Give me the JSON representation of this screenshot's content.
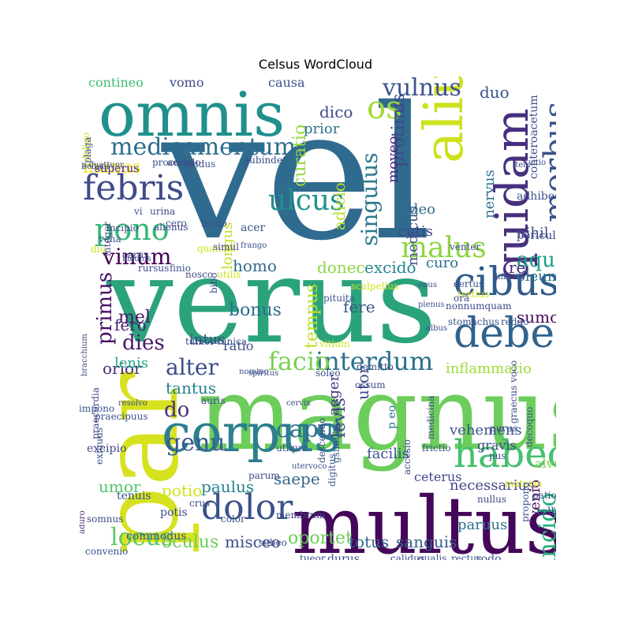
{
  "title": "Celsus WordCloud",
  "words": [
    {
      "t": "vel",
      "c": "#2f6b8f"
    },
    {
      "t": "verus",
      "c": "#2aa37c"
    },
    {
      "t": "magnus",
      "c": "#6ccd5a"
    },
    {
      "t": "par",
      "c": "#d6e21f"
    },
    {
      "t": "multus",
      "c": "#45075a"
    },
    {
      "t": "omnis",
      "c": "#20908d"
    },
    {
      "t": "alius",
      "c": "#cde11d"
    },
    {
      "t": "corpus",
      "c": "#2c7f8e"
    },
    {
      "t": "quidam",
      "c": "#472f7d"
    },
    {
      "t": "cibus",
      "c": "#2f5b8c"
    },
    {
      "t": "debeo",
      "c": "#30628d"
    },
    {
      "t": "habeo",
      "c": "#46c06f"
    },
    {
      "t": "dolor",
      "c": "#3a528b"
    },
    {
      "t": "febris",
      "c": "#3e4a89"
    },
    {
      "t": "medicamentum",
      "c": "#2e6e8e"
    },
    {
      "t": "morbus",
      "c": "#3b518b"
    },
    {
      "t": "pono",
      "c": "#35b779"
    },
    {
      "t": "malus",
      "c": "#8ed542"
    },
    {
      "t": "interdum",
      "c": "#2c718e"
    },
    {
      "t": "os",
      "c": "#a2da37"
    },
    {
      "t": "singulus",
      "c": "#2a788e"
    },
    {
      "t": "facio",
      "c": "#7ad151"
    },
    {
      "t": "ulcus",
      "c": "#21918c"
    },
    {
      "t": "vulnus",
      "c": "#3b528b"
    },
    {
      "t": "locus",
      "c": "#5ec962"
    },
    {
      "t": "caput",
      "c": "#2c728e"
    },
    {
      "t": "incido",
      "c": "#2ab07f"
    },
    {
      "t": "vinum",
      "c": "#440154"
    },
    {
      "t": "alter",
      "c": "#3e4c8a"
    },
    {
      "t": "primus",
      "c": "#471164"
    },
    {
      "t": "dies",
      "c": "#481668"
    },
    {
      "t": "genu",
      "c": "#38598c"
    },
    {
      "t": "aqua",
      "c": "#1fa188"
    },
    {
      "t": "curatio",
      "c": "#95d840"
    },
    {
      "t": "tempus",
      "c": "#bddf26"
    },
    {
      "t": "levis",
      "c": "#404688"
    },
    {
      "t": "oportet",
      "c": "#6ccd5a"
    },
    {
      "t": "sanguis",
      "c": "#34618d"
    },
    {
      "t": "paulus",
      "c": "#26828e"
    },
    {
      "t": "totus",
      "c": "#31688e"
    },
    {
      "t": "vehemens",
      "c": "#3b528b"
    },
    {
      "t": "inflammatio",
      "c": "#9fda3a"
    },
    {
      "t": "do",
      "c": "#46327e"
    },
    {
      "t": "oculus",
      "c": "#6ccd5a"
    },
    {
      "t": "misceo",
      "c": "#3e4a89"
    },
    {
      "t": "homo",
      "c": "#31688e"
    },
    {
      "t": "longus",
      "c": "#c2df23"
    },
    {
      "t": "donec",
      "c": "#8bd646"
    },
    {
      "t": "excido",
      "c": "#24878e"
    },
    {
      "t": "utor",
      "c": "#3e4989"
    },
    {
      "t": "aeger",
      "c": "#453781"
    },
    {
      "t": "saepe",
      "c": "#31688e"
    },
    {
      "t": "facilis",
      "c": "#3b528b"
    },
    {
      "t": "cutis",
      "c": "#3f4788"
    },
    {
      "t": "video",
      "c": "#2e6f8e"
    },
    {
      "t": "nihil",
      "c": "#3d4d8a"
    },
    {
      "t": "tantus",
      "c": "#25848e"
    },
    {
      "t": "bonus",
      "c": "#2e6e8e"
    },
    {
      "t": "fere",
      "c": "#3b528b"
    },
    {
      "t": "sumo",
      "c": "#46075a"
    },
    {
      "t": "oleum",
      "c": "#2d708e"
    },
    {
      "t": "umor",
      "c": "#52c569"
    },
    {
      "t": "orior",
      "c": "#472a7a"
    },
    {
      "t": "fero",
      "c": "#482475"
    },
    {
      "t": "mel",
      "c": "#481a6c"
    },
    {
      "t": "ratio",
      "c": "#3e4a89"
    },
    {
      "t": "intus",
      "c": "#3e4c8a"
    },
    {
      "t": "lenis",
      "c": "#21a685"
    },
    {
      "t": "manus",
      "c": "#f1e51d"
    },
    {
      "t": "potio",
      "c": "#d2e21b"
    },
    {
      "t": "necessarius",
      "c": "#3f4788"
    },
    {
      "t": "gravis",
      "c": "#3e4989"
    },
    {
      "t": "venio",
      "c": "#46085c"
    },
    {
      "t": "paruus",
      "c": "#2c728e"
    },
    {
      "t": "ceterus",
      "c": "#3e4a89"
    },
    {
      "t": "re",
      "c": "#482878"
    },
    {
      "t": "curo",
      "c": "#2c728e"
    },
    {
      "t": "medicus",
      "c": "#3b528b"
    },
    {
      "t": "adicio",
      "c": "#b8de29"
    },
    {
      "t": "prior",
      "c": "#2d708e"
    },
    {
      "t": "dico",
      "c": "#3e4a89"
    },
    {
      "t": "protinus",
      "c": "#3f4788"
    },
    {
      "t": "moveo",
      "c": "#482677"
    },
    {
      "t": "duo",
      "c": "#3b528b"
    },
    {
      "t": "nervus",
      "c": "#2c728e"
    },
    {
      "t": "contineo",
      "c": "#40bd72"
    },
    {
      "t": "vomo",
      "c": "#3e4a89"
    },
    {
      "t": "causa",
      "c": "#3b528b"
    },
    {
      "t": "superus",
      "c": "#482475"
    },
    {
      "t": "conteroacetum",
      "c": "#3e4a89"
    },
    {
      "t": "adhibeo",
      "c": "#3b528b"
    },
    {
      "t": "periculum",
      "c": "#3f4788"
    },
    {
      "t": "alvu",
      "c": "#7ad151"
    },
    {
      "t": "patior",
      "c": "#3b528b"
    },
    {
      "t": "tollo",
      "c": "#3e4c8a"
    },
    {
      "t": "rodo",
      "c": "#3b528b"
    },
    {
      "t": "rectus",
      "c": "#3b528b"
    },
    {
      "t": "pus",
      "c": "#3b528b"
    },
    {
      "t": "purus",
      "c": "#3b528b"
    },
    {
      "t": "p eo",
      "c": "#2c728e"
    },
    {
      "t": "medicina",
      "c": "#3e4a89"
    },
    {
      "t": "tenuis",
      "c": "#3b528b"
    },
    {
      "t": "potis",
      "c": "#3e4a89"
    },
    {
      "t": "commodus",
      "c": "#3b528b"
    },
    {
      "t": "convenio",
      "c": "#3b528b"
    },
    {
      "t": "durus",
      "c": "#3e4a89"
    },
    {
      "t": "tueor",
      "c": "#3e4a89"
    },
    {
      "t": "calidus",
      "c": "#3e4a89"
    },
    {
      "t": "qualis",
      "c": "#3b528b"
    },
    {
      "t": "membrum",
      "c": "#3e4a89"
    },
    {
      "t": "subeo",
      "c": "#3b528b"
    },
    {
      "t": "crus",
      "c": "#3e4a89"
    },
    {
      "t": "color",
      "c": "#3b528b"
    },
    {
      "t": "exiguus",
      "c": "#3b528b"
    },
    {
      "t": "excipio",
      "c": "#3e4a89"
    },
    {
      "t": "aduro",
      "c": "#482878"
    },
    {
      "t": "impono",
      "c": "#3b528b"
    },
    {
      "t": "praecordia",
      "c": "#3e4a89"
    },
    {
      "t": "praecipuus",
      "c": "#3b528b"
    },
    {
      "t": "bracchium",
      "c": "#3e4a89"
    },
    {
      "t": "resolvo",
      "c": "#3e4a89"
    },
    {
      "t": "auris",
      "c": "#3b528b"
    },
    {
      "t": "tumor",
      "c": "#3e4a89"
    },
    {
      "t": "tunica",
      "c": "#3b528b"
    },
    {
      "t": "nomino",
      "c": "#3e4a89"
    },
    {
      "t": "spiritus",
      "c": "#3b528b"
    },
    {
      "t": "soleo",
      "c": "#3e4a89"
    },
    {
      "t": "demitto",
      "c": "#3b528b"
    },
    {
      "t": "ossum",
      "c": "#3e4a89"
    },
    {
      "t": "vitium",
      "c": "#d2e21b"
    },
    {
      "t": "albus",
      "c": "#3e4a89"
    },
    {
      "t": "stomachus",
      "c": "#3b528b"
    },
    {
      "t": "nonnumquam",
      "c": "#3e4a89"
    },
    {
      "t": "plenus",
      "c": "#3b528b"
    },
    {
      "t": "tertius",
      "c": "#d2e21b"
    },
    {
      "t": "certus",
      "c": "#3b528b"
    },
    {
      "t": "opus",
      "c": "#3e4a89"
    },
    {
      "t": "pituita",
      "c": "#3b528b"
    },
    {
      "t": "scalpellus",
      "c": "#d2e21b"
    },
    {
      "t": "bibo",
      "c": "#3b528b"
    },
    {
      "t": "integer",
      "c": "#3e4a89"
    },
    {
      "t": "medius",
      "c": "#3b528b"
    },
    {
      "t": "rursus",
      "c": "#3e4a89"
    },
    {
      "t": "finio",
      "c": "#3b528b"
    },
    {
      "t": "nosco",
      "c": "#3e4a89"
    },
    {
      "t": "quantus",
      "c": "#d2e21b"
    },
    {
      "t": "frango",
      "c": "#3b528b"
    },
    {
      "t": "simul",
      "c": "#3e4a89"
    },
    {
      "t": "utilis",
      "c": "#d2e21b"
    },
    {
      "t": "cero",
      "c": "#3b528b"
    },
    {
      "t": "alienus",
      "c": "#3e4a89"
    },
    {
      "t": "acer",
      "c": "#3b528b"
    },
    {
      "t": "incipio",
      "c": "#3e4a89"
    },
    {
      "t": "vena",
      "c": "#3b528b"
    },
    {
      "t": "diu",
      "c": "#d2e21b"
    },
    {
      "t": "carus",
      "c": "#3e4a89"
    },
    {
      "t": "laedo",
      "c": "#3b528b"
    },
    {
      "t": "urina",
      "c": "#3e4a89"
    },
    {
      "t": "vi",
      "c": "#3b528b"
    },
    {
      "t": "deligo",
      "c": "#d2e21b"
    },
    {
      "t": "sequor",
      "c": "#3e4a89"
    },
    {
      "t": "procedo",
      "c": "#3b528b"
    },
    {
      "t": "accedo",
      "c": "#3e4a89"
    },
    {
      "t": "aridus",
      "c": "#3b528b"
    },
    {
      "t": "subinde",
      "c": "#3e4a89"
    },
    {
      "t": "plaga",
      "c": "#3b528b"
    },
    {
      "t": "item",
      "c": "#3e4a89"
    },
    {
      "t": "ora",
      "c": "#3b528b"
    },
    {
      "t": "venter",
      "c": "#3e4a89"
    },
    {
      "t": "p quattuor",
      "c": "#3b528b"
    },
    {
      "t": "difficilis",
      "c": "#3e4a89"
    },
    {
      "t": "reddo",
      "c": "#3b528b"
    },
    {
      "t": "vitio",
      "c": "#3e4a89"
    },
    {
      "t": "frictio",
      "c": "#3b528b"
    },
    {
      "t": "accesio",
      "c": "#3e4a89"
    },
    {
      "t": "gsimilis",
      "c": "#3b528b"
    },
    {
      "t": "descendo",
      "c": "#3e4a89"
    },
    {
      "t": "utervoco",
      "c": "#3b528b"
    },
    {
      "t": "cervix",
      "c": "#3e4a89"
    },
    {
      "t": "utique",
      "c": "#3b528b"
    },
    {
      "t": "parum",
      "c": "#3e4a89"
    },
    {
      "t": "digitus",
      "c": "#3b528b"
    },
    {
      "t": "nullus",
      "c": "#3e4a89"
    },
    {
      "t": "materia",
      "c": "#d2e21b"
    },
    {
      "t": "propono",
      "c": "#3b528b"
    },
    {
      "t": "graecus voco",
      "c": "#3e4a89"
    },
    {
      "t": "decoquo",
      "c": "#3b528b"
    },
    {
      "t": "somnus",
      "c": "#3e4a89"
    },
    {
      "t": "valeo",
      "c": "#d2e21b"
    },
    {
      "t": "frigidus",
      "c": "#3b528b"
    },
    {
      "t": "umerus",
      "c": "#3e4a89"
    },
    {
      "t": "levo",
      "c": "#3b528b"
    },
    {
      "t": "abstineo",
      "c": "#3e4a89"
    },
    {
      "t": "naris",
      "c": "#3b528b"
    },
    {
      "t": "cresco",
      "c": "#3e4a89"
    },
    {
      "t": "aequus",
      "c": "#3b528b"
    },
    {
      "t": "coquo",
      "c": "#d2e21b"
    },
    {
      "t": "certo",
      "c": "#3e4a89"
    }
  ]
}
